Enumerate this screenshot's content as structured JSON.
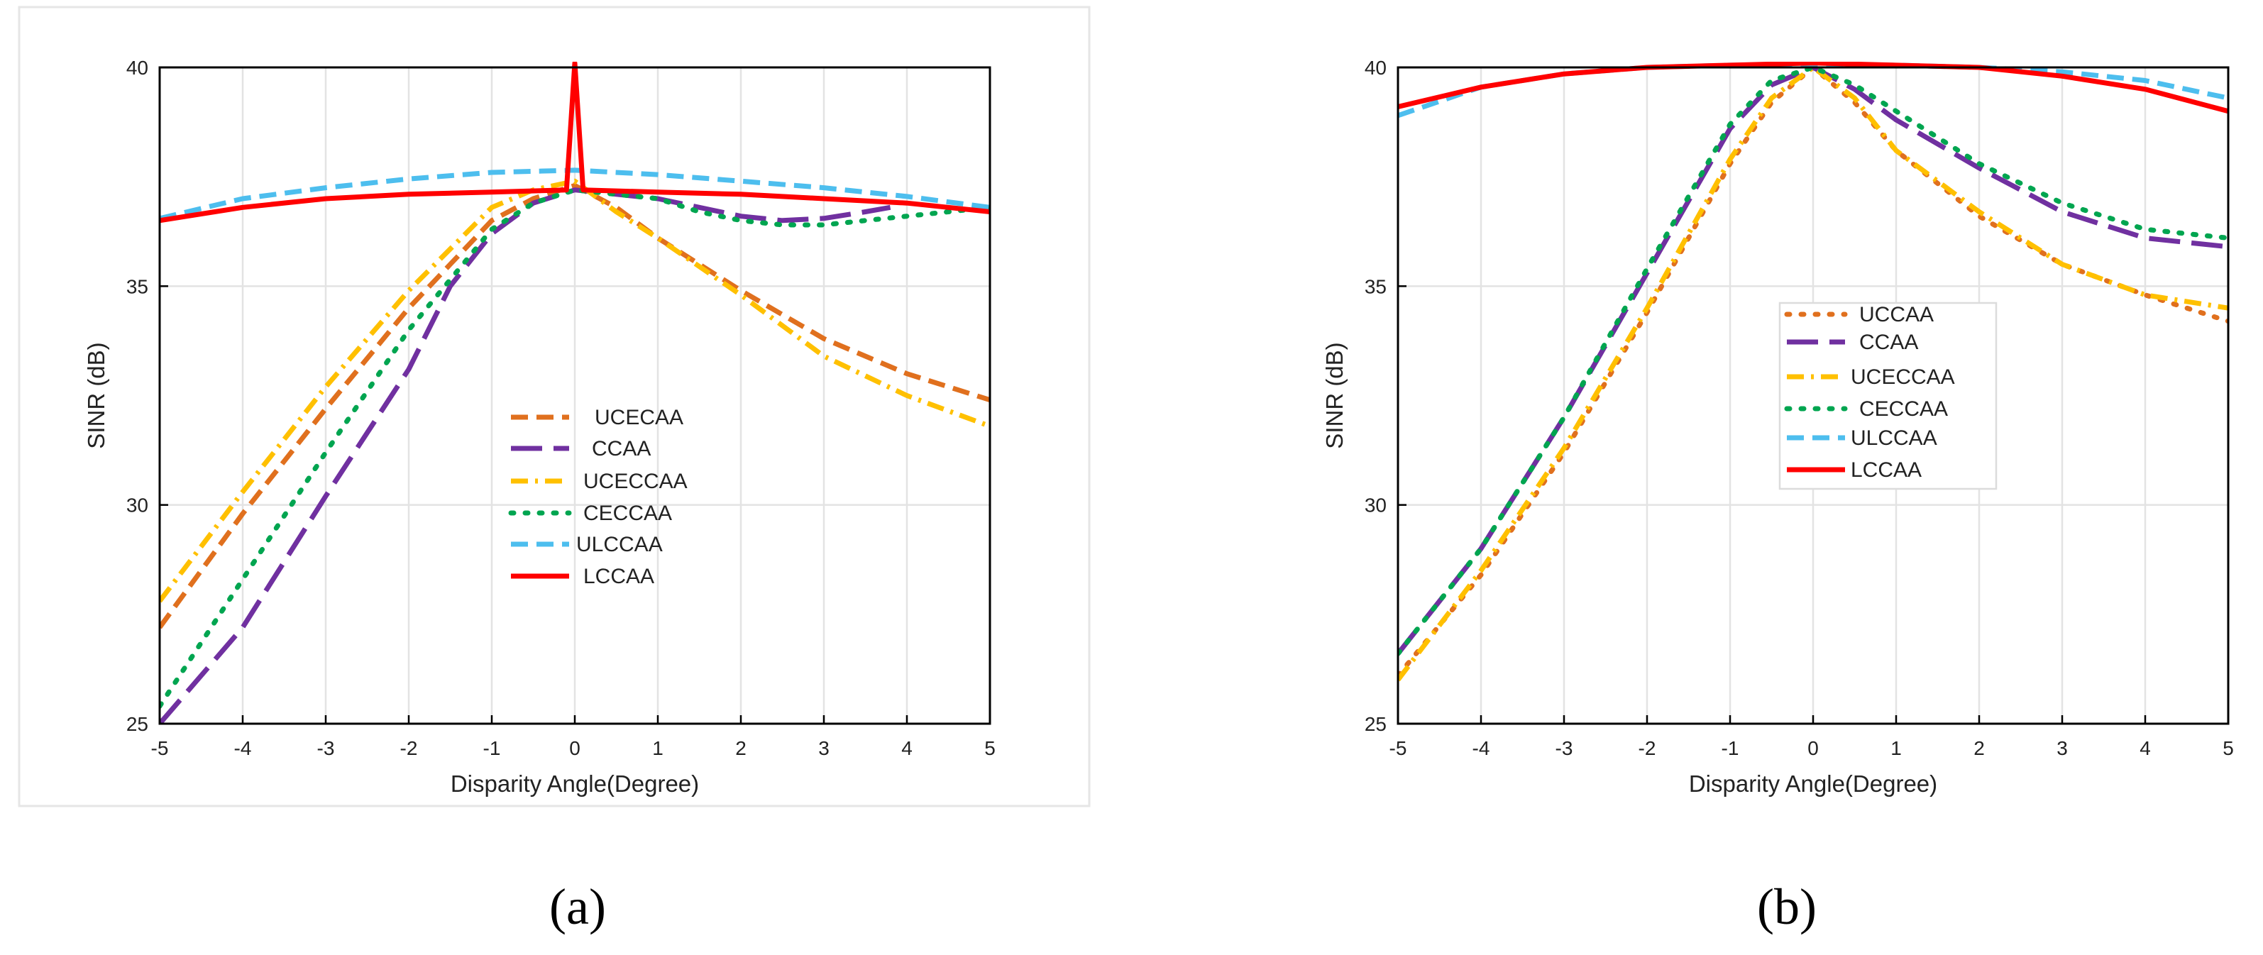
{
  "panels": [
    {
      "label": "(a)"
    },
    {
      "label": "(b)"
    }
  ],
  "chart_data": [
    {
      "type": "line",
      "panel": "(a)",
      "xlabel": "Disparity Angle(Degree)",
      "ylabel": "SINR (dB)",
      "xlim": [
        -5,
        5
      ],
      "ylim": [
        25,
        40
      ],
      "xticks": [
        -5,
        -4,
        -3,
        -2,
        -1,
        0,
        1,
        2,
        3,
        4,
        5
      ],
      "yticks": [
        25,
        30,
        35,
        40
      ],
      "grid": true,
      "legend_position": "center",
      "series": [
        {
          "name": "UCECAA",
          "color": "#E0701E",
          "style": "dashed",
          "x": [
            -5,
            -4,
            -3,
            -2,
            -1,
            -0.5,
            0,
            0.5,
            1,
            2,
            3,
            4,
            5
          ],
          "y": [
            27.2,
            29.8,
            32.2,
            34.5,
            36.5,
            37.0,
            37.3,
            36.8,
            36.1,
            34.9,
            33.8,
            33.0,
            32.4
          ]
        },
        {
          "name": "CCAA",
          "color": "#7030A0",
          "style": "long-dash",
          "x": [
            -5,
            -4,
            -3,
            -2,
            -1.5,
            -1,
            -0.5,
            0,
            0.5,
            1,
            1.5,
            2,
            2.5,
            3,
            3.5,
            3.8
          ],
          "y": [
            25.0,
            27.2,
            30.2,
            33.1,
            35.0,
            36.2,
            36.9,
            37.2,
            37.1,
            37.0,
            36.8,
            36.6,
            36.5,
            36.55,
            36.7,
            36.8
          ]
        },
        {
          "name": "UCECCAA",
          "color": "#FFC000",
          "style": "dash-dot",
          "x": [
            -5,
            -4,
            -3,
            -2,
            -1,
            -0.5,
            0,
            0.5,
            1,
            2,
            3,
            4,
            5
          ],
          "y": [
            27.8,
            30.3,
            32.7,
            34.9,
            36.8,
            37.2,
            37.4,
            36.7,
            36.1,
            34.8,
            33.4,
            32.5,
            31.8
          ]
        },
        {
          "name": "CECCAA",
          "color": "#00A550",
          "style": "dotted",
          "x": [
            -5,
            -4,
            -3,
            -2,
            -1,
            -0.5,
            0,
            0.5,
            1,
            1.5,
            2,
            2.5,
            3,
            3.5,
            4,
            4.5,
            5
          ],
          "y": [
            25.4,
            28.3,
            31.2,
            34.0,
            36.3,
            36.9,
            37.2,
            37.1,
            37.0,
            36.7,
            36.5,
            36.4,
            36.4,
            36.5,
            36.6,
            36.7,
            36.8
          ]
        },
        {
          "name": "ULCCAA",
          "color": "#4DBEEE",
          "style": "dashed",
          "x": [
            -5,
            -4,
            -3,
            -2,
            -1,
            0,
            1,
            2,
            3,
            4,
            5
          ],
          "y": [
            36.55,
            37.0,
            37.25,
            37.45,
            37.6,
            37.65,
            37.55,
            37.4,
            37.25,
            37.05,
            36.8
          ]
        },
        {
          "name": "LCCAA",
          "color": "#FF0000",
          "style": "solid",
          "x": [
            -5,
            -4,
            -3,
            -2,
            -1,
            -0.1,
            0,
            0.1,
            1,
            2,
            3,
            4,
            5
          ],
          "y": [
            36.5,
            36.8,
            37.0,
            37.1,
            37.15,
            37.2,
            40.1,
            37.2,
            37.15,
            37.1,
            37.0,
            36.9,
            36.7
          ]
        }
      ]
    },
    {
      "type": "line",
      "panel": "(b)",
      "xlabel": "Disparity Angle(Degree)",
      "ylabel": "SINR (dB)",
      "xlim": [
        -5,
        5
      ],
      "ylim": [
        25,
        40
      ],
      "xticks": [
        -5,
        -4,
        -3,
        -2,
        -1,
        0,
        1,
        2,
        3,
        4,
        5
      ],
      "yticks": [
        25,
        30,
        35,
        40
      ],
      "grid": true,
      "legend_position": "center",
      "series": [
        {
          "name": "UCCAA",
          "color": "#E0701E",
          "style": "dotted",
          "x": [
            -5,
            -4,
            -3,
            -2,
            -1,
            -0.5,
            0,
            0.5,
            1,
            2,
            3,
            4,
            5
          ],
          "y": [
            26.1,
            28.4,
            31.2,
            34.4,
            37.8,
            39.2,
            40.0,
            39.2,
            38.1,
            36.6,
            35.5,
            34.8,
            34.2
          ]
        },
        {
          "name": "CCAA",
          "color": "#7030A0",
          "style": "long-dash",
          "x": [
            -5,
            -4,
            -3,
            -2,
            -1,
            -0.5,
            0,
            0.5,
            1,
            2,
            3,
            4,
            5
          ],
          "y": [
            26.6,
            29.0,
            32.0,
            35.3,
            38.6,
            39.6,
            40.0,
            39.5,
            38.8,
            37.7,
            36.7,
            36.1,
            35.9
          ]
        },
        {
          "name": "UCECCAA",
          "color": "#FFC000",
          "style": "dash-dot",
          "x": [
            -5,
            -4,
            -3,
            -2,
            -1,
            -0.5,
            0,
            0.5,
            1,
            2,
            3,
            4,
            5
          ],
          "y": [
            26.0,
            28.5,
            31.3,
            34.5,
            37.9,
            39.3,
            40.0,
            39.3,
            38.1,
            36.7,
            35.5,
            34.8,
            34.5
          ]
        },
        {
          "name": "CECCAA",
          "color": "#00A550",
          "style": "dotted",
          "x": [
            -5,
            -4,
            -3,
            -2,
            -1,
            -0.5,
            0,
            0.5,
            1,
            2,
            3,
            4,
            5
          ],
          "y": [
            26.6,
            29.0,
            32.0,
            35.4,
            38.7,
            39.7,
            40.0,
            39.6,
            39.0,
            37.8,
            36.9,
            36.3,
            36.1
          ]
        },
        {
          "name": "ULCCAA",
          "color": "#4DBEEE",
          "style": "dashed",
          "x": [
            -5,
            -4,
            -3,
            -2,
            -1,
            0,
            1,
            2,
            3,
            4,
            5
          ],
          "y": [
            38.9,
            39.55,
            39.85,
            40.0,
            40.05,
            40.05,
            40.05,
            40.0,
            39.9,
            39.7,
            39.3
          ]
        },
        {
          "name": "LCCAA",
          "color": "#FF0000",
          "style": "solid",
          "x": [
            -5,
            -4,
            -3,
            -2,
            -1,
            0,
            1,
            2,
            3,
            4,
            5
          ],
          "y": [
            39.1,
            39.55,
            39.85,
            40.0,
            40.05,
            40.1,
            40.05,
            40.0,
            39.8,
            39.5,
            39.0
          ]
        }
      ]
    }
  ]
}
